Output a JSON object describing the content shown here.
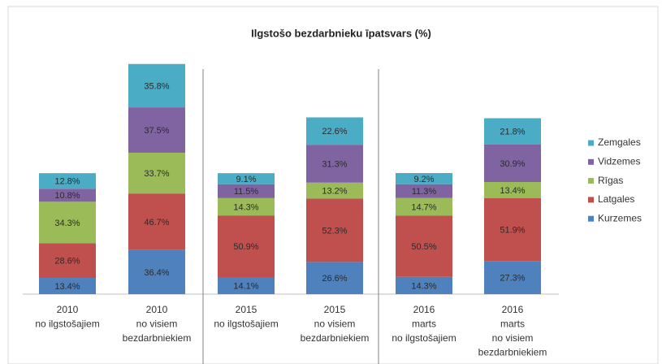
{
  "chart_data": {
    "type": "stacked_bar",
    "title": "Ilgstošo bezdarbnieku īpatsvars (%)",
    "categories": [
      [
        "2010",
        "no ilgstošajiem"
      ],
      [
        "2010",
        "no visiem",
        "bezdarbniekiem"
      ],
      [
        "2015",
        "no ilgstošajiem"
      ],
      [
        "2015",
        "no visiem",
        "bezdarbniekiem"
      ],
      [
        "2016",
        "marts",
        "no ilgstošajiem"
      ],
      [
        "2016",
        "marts",
        "no visiem",
        "bezdarbniekiem"
      ]
    ],
    "series": [
      {
        "name": "Kurzemes",
        "color": "#4f81bd",
        "values": [
          13.4,
          36.4,
          14.1,
          26.6,
          14.3,
          27.3
        ],
        "value_labels": [
          "13.4%",
          "36.4%",
          "14.1%",
          "26.6%",
          "14.3%",
          "27.3%"
        ]
      },
      {
        "name": "Latgales",
        "color": "#c0504d",
        "values": [
          28.6,
          46.7,
          50.9,
          52.3,
          50.5,
          51.9
        ],
        "value_labels": [
          "28.6%",
          "46.7%",
          "50.9%",
          "52.3%",
          "50.5%",
          "51.9%"
        ]
      },
      {
        "name": "Rīgas",
        "color": "#9bbb59",
        "values": [
          34.3,
          33.7,
          14.3,
          13.2,
          14.7,
          13.4
        ],
        "value_labels": [
          "34.3%",
          "33.7%",
          "14.3%",
          "13.2%",
          "14.7%",
          "13.4%"
        ]
      },
      {
        "name": "Vidzemes",
        "color": "#8064a2",
        "values": [
          10.8,
          37.5,
          11.5,
          31.3,
          11.3,
          30.9
        ],
        "value_labels": [
          "10.8%",
          "37.5%",
          "11.5%",
          "31.3%",
          "11.3%",
          "30.9%"
        ]
      },
      {
        "name": "Zemgales",
        "color": "#4bacc6",
        "values": [
          12.8,
          35.8,
          9.1,
          22.6,
          9.2,
          21.8
        ],
        "value_labels": [
          "12.8%",
          "35.8%",
          "9.1%",
          "22.6%",
          "9.2%",
          "21.8%"
        ]
      }
    ],
    "legend": "right"
  }
}
